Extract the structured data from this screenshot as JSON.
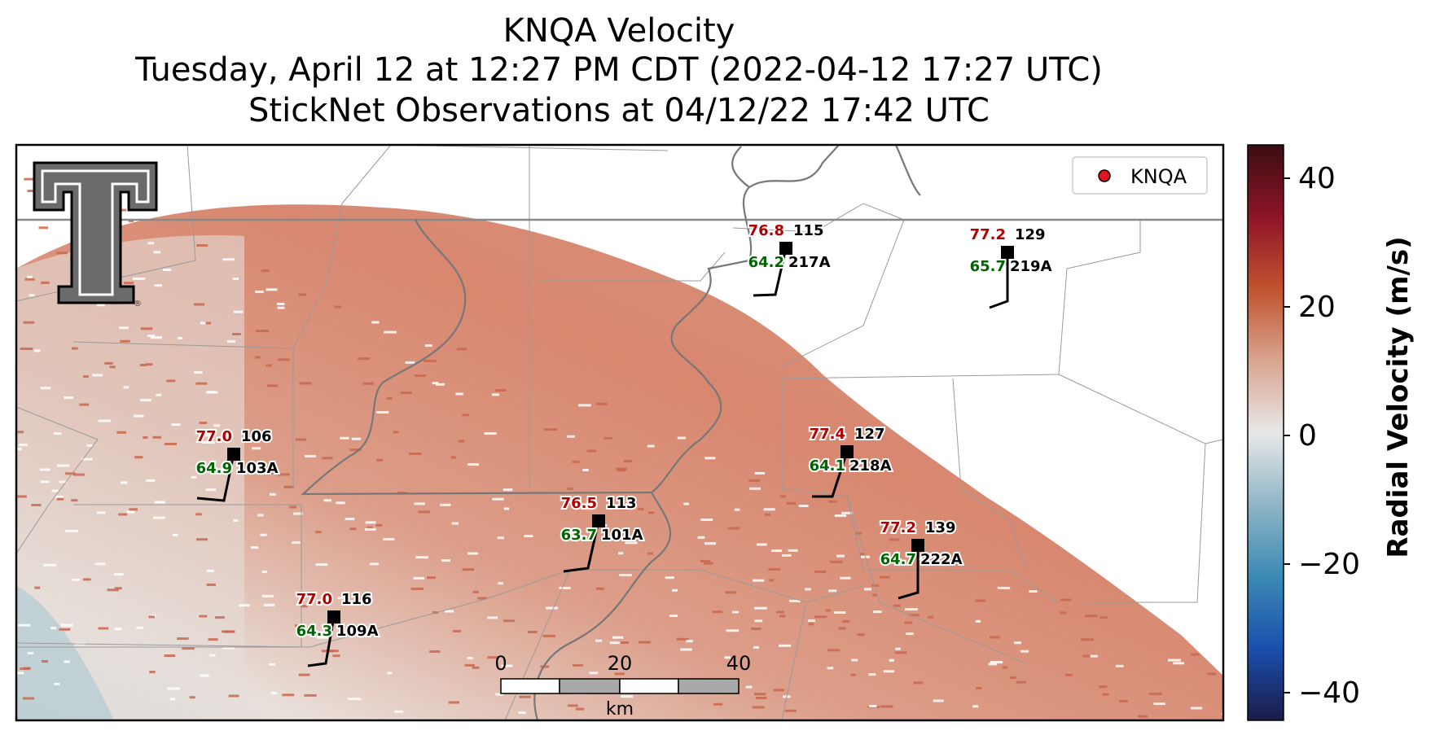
{
  "title": {
    "line1": "KNQA Velocity",
    "line2": "Tuesday, April 12 at 12:27 PM CDT (2022-04-12 17:27 UTC)",
    "line3": "StickNet Observations at 04/12/22 17:42 UTC"
  },
  "legend": {
    "label": "KNQA",
    "marker_color": "#e0161c"
  },
  "logo": {
    "name": "Texas Tech double-T logo",
    "mark": "®"
  },
  "stations": [
    {
      "id": "103A",
      "temp": "77.0",
      "dewpoint": "64.9",
      "pressure": "106"
    },
    {
      "id": "109A",
      "temp": "77.0",
      "dewpoint": "64.3",
      "pressure": "116"
    },
    {
      "id": "101A",
      "temp": "76.5",
      "dewpoint": "63.7",
      "pressure": "113"
    },
    {
      "id": "217A",
      "temp": "76.8",
      "dewpoint": "64.2",
      "pressure": "115"
    },
    {
      "id": "219A",
      "temp": "77.2",
      "dewpoint": "65.7",
      "pressure": "129"
    },
    {
      "id": "218A",
      "temp": "77.4",
      "dewpoint": "64.1",
      "pressure": "127"
    },
    {
      "id": "222A",
      "temp": "77.2",
      "dewpoint": "64.7",
      "pressure": "139"
    }
  ],
  "scalebar": {
    "ticks": [
      "0",
      "20",
      "40"
    ],
    "unit": "km"
  },
  "colorbar": {
    "label": "Radial Velocity (m/s)",
    "ticks": [
      "40",
      "20",
      "0",
      "−20",
      "−40"
    ],
    "colors": [
      "#3a0d12",
      "#8e1427",
      "#c0522f",
      "#d9a58f",
      "#e8e8e8",
      "#8fb5c6",
      "#3a8ab4",
      "#1a4fae",
      "#1b1b48"
    ]
  },
  "colors": {
    "temp": "#b00000",
    "dewpoint": "#006400",
    "echo": "#c8674f"
  }
}
